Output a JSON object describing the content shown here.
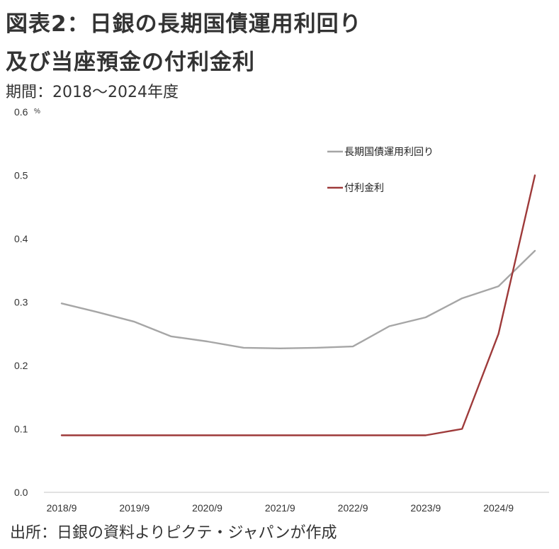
{
  "title_line1": "図表2：日銀の長期国債運用利回り",
  "title_line2": "及び当座預金の付利金利",
  "period": "期間：2018～2024年度",
  "source": "出所：日銀の資料よりピクテ・ジャパンが作成",
  "chart_data": {
    "type": "line",
    "y_unit": "%",
    "ylim": [
      0,
      0.6
    ],
    "y_ticks": [
      "0.0",
      "0.1",
      "0.2",
      "0.3",
      "0.4",
      "0.5",
      "0.6"
    ],
    "x_tick_labels": [
      "2018/9",
      "2019/9",
      "2020/9",
      "2021/9",
      "2022/9",
      "2023/9",
      "2024/9"
    ],
    "x_points": [
      "2018/9",
      "2019/3",
      "2019/9",
      "2020/3",
      "2020/9",
      "2021/3",
      "2021/9",
      "2022/3",
      "2022/9",
      "2023/3",
      "2023/9",
      "2024/3",
      "2024/9",
      "2025/3"
    ],
    "grid": false,
    "legend_position": "top-right",
    "series": [
      {
        "name": "長期国債運用利回り",
        "color": "#a6a6a6",
        "values": [
          0.298,
          0.284,
          0.269,
          0.246,
          0.238,
          0.228,
          0.227,
          0.228,
          0.23,
          0.262,
          0.276,
          0.306,
          0.325,
          0.381
        ]
      },
      {
        "name": "付利金利",
        "color": "#9e3a3a",
        "values": [
          0.09,
          0.09,
          0.09,
          0.09,
          0.09,
          0.09,
          0.09,
          0.09,
          0.09,
          0.09,
          0.09,
          0.1,
          0.25,
          0.5
        ]
      }
    ]
  }
}
